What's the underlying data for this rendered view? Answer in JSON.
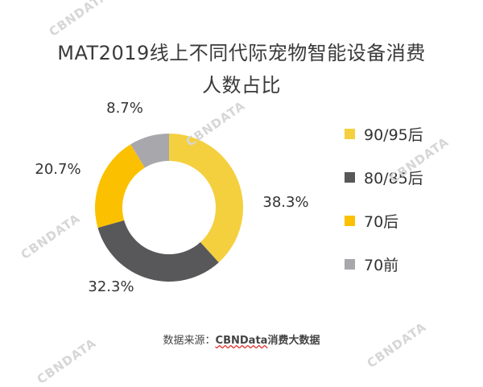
{
  "title_line1": "MAT2019线上不同代际宠物智能设备消费",
  "title_line2": "人数占比",
  "source_prefix": "数据来源：",
  "source_brand": "CBNData",
  "source_suffix": "消费大数据",
  "watermark": "CBNDATA",
  "chart_data": {
    "type": "pie",
    "donut": true,
    "title": "MAT2019线上不同代际宠物智能设备消费人数占比",
    "categories": [
      "90/95后",
      "80/85后",
      "70后",
      "70前"
    ],
    "values": [
      38.3,
      32.3,
      20.7,
      8.7
    ],
    "labels": [
      "38.3%",
      "32.3%",
      "20.7%",
      "8.7%"
    ],
    "colors": [
      "#F4D03F",
      "#58585A",
      "#FBC100",
      "#A8A8AC"
    ],
    "legend_position": "right"
  }
}
